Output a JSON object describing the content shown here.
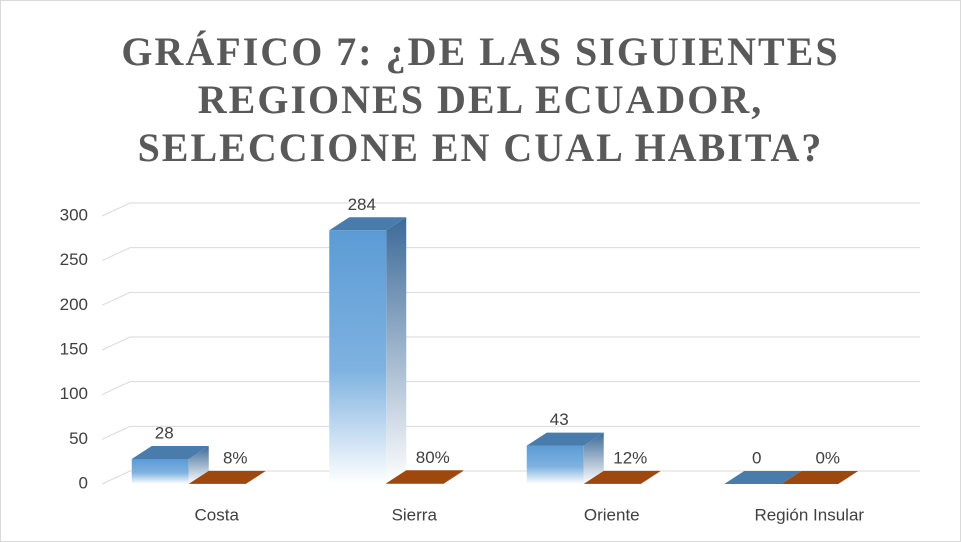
{
  "chart_data": {
    "type": "bar3d",
    "title": "GRÁFICO 7: ¿DE LAS SIGUIENTES REGIONES DEL ECUADOR, SELECCIONE EN CUAL HABITA?",
    "categories": [
      "Costa",
      "Sierra",
      "Oriente",
      "Región Insular"
    ],
    "series": [
      {
        "color": "#5b9bd5",
        "values": [
          28,
          284,
          43,
          0
        ]
      },
      {
        "color": "#c55a11",
        "values": [
          0.08,
          0.8,
          0.12,
          0
        ],
        "value_labels": [
          "8%",
          "80%",
          "12%",
          "0%"
        ]
      }
    ],
    "ylim": [
      0,
      300
    ],
    "yticks": [
      0,
      50,
      100,
      150,
      200,
      250,
      300
    ],
    "grid": true
  }
}
